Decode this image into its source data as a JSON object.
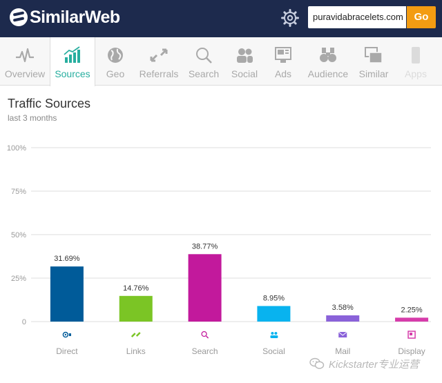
{
  "header": {
    "brand": "SimilarWeb",
    "search_value": "puravidabracelets.com",
    "go_label": "Go"
  },
  "nav": {
    "items": [
      {
        "label": "Overview",
        "icon": "pulse-icon",
        "active": false
      },
      {
        "label": "Sources",
        "icon": "bar-chart-icon",
        "active": true
      },
      {
        "label": "Geo",
        "icon": "globe-icon",
        "active": false
      },
      {
        "label": "Referrals",
        "icon": "arrows-icon",
        "active": false
      },
      {
        "label": "Search",
        "icon": "magnifier-icon",
        "active": false
      },
      {
        "label": "Social",
        "icon": "people-icon",
        "active": false
      },
      {
        "label": "Ads",
        "icon": "ad-icon",
        "active": false
      },
      {
        "label": "Audience",
        "icon": "binoculars-icon",
        "active": false
      },
      {
        "label": "Similar",
        "icon": "stacked-windows-icon",
        "active": false
      },
      {
        "label": "Apps",
        "icon": "phone-icon",
        "active": false
      }
    ]
  },
  "panel": {
    "title": "Traffic Sources",
    "subtitle": "last 3 months"
  },
  "chart_data": {
    "type": "bar",
    "title": "Traffic Sources",
    "categories": [
      "Direct",
      "Links",
      "Search",
      "Social",
      "Mail",
      "Display"
    ],
    "values": [
      31.69,
      14.76,
      38.77,
      8.95,
      3.58,
      2.25
    ],
    "value_labels": [
      "31.69%",
      "14.76%",
      "38.77%",
      "8.95%",
      "3.58%",
      "2.25%"
    ],
    "colors": [
      "#005b99",
      "#7bc525",
      "#c2199c",
      "#08b3ef",
      "#8a62d9",
      "#d63caa"
    ],
    "icons": [
      "eye-icon",
      "link-icon",
      "magnifier-icon",
      "people-icon",
      "envelope-icon",
      "display-ad-icon"
    ],
    "ylim": [
      0,
      100
    ],
    "yticks": [
      0,
      25,
      50,
      75,
      100
    ],
    "ytick_labels": [
      "0",
      "25%",
      "50%",
      "75%",
      "100%"
    ],
    "grid": true,
    "legend": "none"
  },
  "watermark": {
    "text": "Kickstarter专业运营"
  }
}
